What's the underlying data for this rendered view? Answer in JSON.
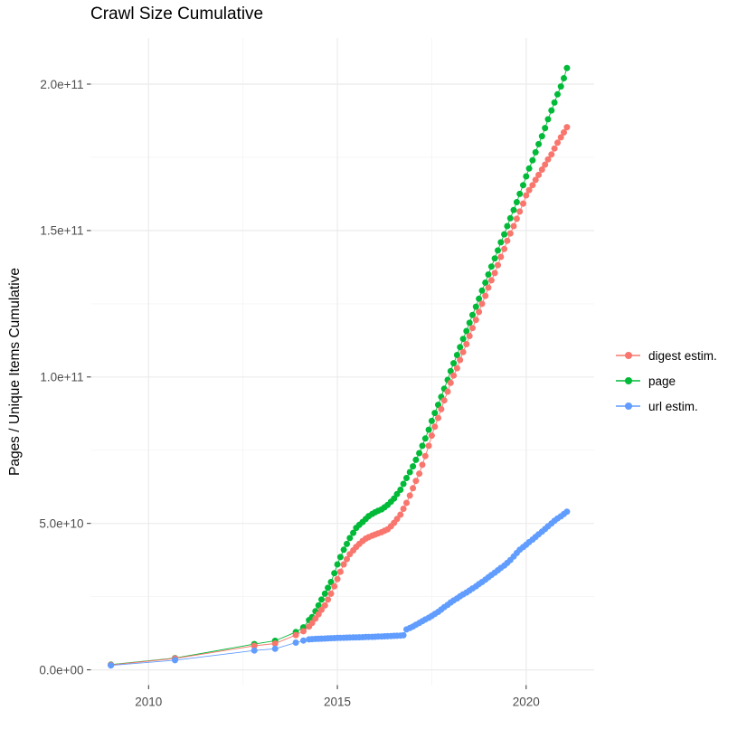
{
  "page": {
    "title": "Crawl Size Cumulative"
  },
  "chart_data": {
    "type": "scatter",
    "title": "Crawl Size Cumulative",
    "xlabel": "",
    "ylabel": "Pages / Unique Items Cumulative",
    "legend_position": "right",
    "grid": {
      "major_color": "#EBEBEB",
      "minor_color": "#F4F4F4",
      "panel_background": "#FFFFFF"
    },
    "axis_text_color": "#4D4D4D",
    "tick_mark_color": "#333333",
    "value_unit_note": "point values stored in billions (1e9); y axis shown in scientific notation",
    "x_range": [
      2008.45,
      2021.85
    ],
    "y_range_billions": [
      -5,
      222
    ],
    "x_ticks": [
      {
        "label": "2010",
        "year": 2010
      },
      {
        "label": "2015",
        "year": 2015
      },
      {
        "label": "2020",
        "year": 2020
      }
    ],
    "x_minor_ticks": [
      2012.5,
      2017.5,
      2022.5
    ],
    "y_ticks": [
      {
        "label": "0.0e+00",
        "billions": 0
      },
      {
        "label": "5.0e+10",
        "billions": 50
      },
      {
        "label": "1.0e+11",
        "billions": 100
      },
      {
        "label": "1.5e+11",
        "billions": 150
      },
      {
        "label": "2.0e+11",
        "billions": 200
      }
    ],
    "y_minor_ticks": [
      25,
      75,
      125,
      175
    ],
    "draw_order": [
      1,
      0,
      2
    ],
    "series": [
      {
        "name": "digest estim.",
        "color": "#F8766D",
        "points": [
          [
            2009.0,
            1.7
          ],
          [
            2010.7,
            3.9
          ],
          [
            2012.8,
            8.2
          ],
          [
            2013.35,
            9.0
          ],
          [
            2013.9,
            11.9
          ],
          [
            2014.1,
            13.2
          ],
          [
            2014.25,
            14.8
          ],
          [
            2014.33,
            16
          ],
          [
            2014.42,
            17.5
          ],
          [
            2014.5,
            19
          ],
          [
            2014.58,
            20.5
          ],
          [
            2014.67,
            22
          ],
          [
            2014.75,
            24
          ],
          [
            2014.83,
            26
          ],
          [
            2014.92,
            28.5
          ],
          [
            2015.0,
            31
          ],
          [
            2015.08,
            33.5
          ],
          [
            2015.17,
            36
          ],
          [
            2015.25,
            37.8
          ],
          [
            2015.33,
            39.5
          ],
          [
            2015.42,
            40.8
          ],
          [
            2015.5,
            42
          ],
          [
            2015.58,
            43
          ],
          [
            2015.67,
            44
          ],
          [
            2015.75,
            44.8
          ],
          [
            2015.83,
            45.3
          ],
          [
            2015.92,
            45.8
          ],
          [
            2016.0,
            46.2
          ],
          [
            2016.08,
            46.6
          ],
          [
            2016.17,
            47
          ],
          [
            2016.25,
            47.5
          ],
          [
            2016.33,
            48
          ],
          [
            2016.42,
            49
          ],
          [
            2016.5,
            50.2
          ],
          [
            2016.58,
            51.5
          ],
          [
            2016.67,
            53
          ],
          [
            2016.75,
            55
          ],
          [
            2016.83,
            57
          ],
          [
            2016.92,
            59.5
          ],
          [
            2017.0,
            62
          ],
          [
            2017.08,
            64.5
          ],
          [
            2017.17,
            67
          ],
          [
            2017.25,
            70
          ],
          [
            2017.33,
            73
          ],
          [
            2017.42,
            76.5
          ],
          [
            2017.5,
            80
          ],
          [
            2017.58,
            83
          ],
          [
            2017.67,
            86
          ],
          [
            2017.75,
            89
          ],
          [
            2017.83,
            92
          ],
          [
            2017.92,
            95
          ],
          [
            2018.0,
            98
          ],
          [
            2018.08,
            100.5
          ],
          [
            2018.17,
            103
          ],
          [
            2018.25,
            105.8
          ],
          [
            2018.33,
            108.5
          ],
          [
            2018.42,
            111.2
          ],
          [
            2018.5,
            114
          ],
          [
            2018.58,
            116.7
          ],
          [
            2018.67,
            119.5
          ],
          [
            2018.75,
            122.2
          ],
          [
            2018.83,
            125
          ],
          [
            2018.92,
            127.7
          ],
          [
            2019.0,
            130.5
          ],
          [
            2019.08,
            133
          ],
          [
            2019.17,
            135.5
          ],
          [
            2019.25,
            138.2
          ],
          [
            2019.33,
            141
          ],
          [
            2019.42,
            143.7
          ],
          [
            2019.5,
            146.5
          ],
          [
            2019.58,
            149
          ],
          [
            2019.67,
            151.5
          ],
          [
            2019.75,
            154
          ],
          [
            2019.83,
            156.5
          ],
          [
            2019.92,
            159.2
          ],
          [
            2020.0,
            162
          ],
          [
            2020.08,
            163.8
          ],
          [
            2020.17,
            165.5
          ],
          [
            2020.25,
            167.3
          ],
          [
            2020.33,
            169
          ],
          [
            2020.42,
            170.8
          ],
          [
            2020.5,
            172.5
          ],
          [
            2020.58,
            174.3
          ],
          [
            2020.67,
            176
          ],
          [
            2020.75,
            178
          ],
          [
            2020.83,
            180
          ],
          [
            2020.92,
            181.8
          ],
          [
            2021.0,
            183.5
          ],
          [
            2021.08,
            185.3
          ]
        ]
      },
      {
        "name": "page",
        "color": "#00BA38",
        "points": [
          [
            2009.0,
            1.8
          ],
          [
            2010.7,
            4.0
          ],
          [
            2012.8,
            8.8
          ],
          [
            2013.35,
            9.9
          ],
          [
            2013.9,
            12.9
          ],
          [
            2014.1,
            14.5
          ],
          [
            2014.25,
            17.0
          ],
          [
            2014.33,
            18
          ],
          [
            2014.42,
            20
          ],
          [
            2014.5,
            22
          ],
          [
            2014.58,
            24
          ],
          [
            2014.67,
            26
          ],
          [
            2014.75,
            28
          ],
          [
            2014.83,
            30
          ],
          [
            2014.92,
            33
          ],
          [
            2015.0,
            36
          ],
          [
            2015.08,
            38.5
          ],
          [
            2015.17,
            41
          ],
          [
            2015.25,
            43
          ],
          [
            2015.33,
            45
          ],
          [
            2015.42,
            46.8
          ],
          [
            2015.5,
            48.5
          ],
          [
            2015.58,
            49.5
          ],
          [
            2015.67,
            50.5
          ],
          [
            2015.75,
            51.5
          ],
          [
            2015.83,
            52.5
          ],
          [
            2015.92,
            53.2
          ],
          [
            2016.0,
            53.8
          ],
          [
            2016.08,
            54.3
          ],
          [
            2016.17,
            54.8
          ],
          [
            2016.25,
            55.5
          ],
          [
            2016.33,
            56.3
          ],
          [
            2016.42,
            57.4
          ],
          [
            2016.5,
            58.5
          ],
          [
            2016.58,
            60
          ],
          [
            2016.67,
            61.5
          ],
          [
            2016.75,
            63.5
          ],
          [
            2016.83,
            65.5
          ],
          [
            2016.92,
            67.5
          ],
          [
            2017.0,
            69.5
          ],
          [
            2017.08,
            71.7
          ],
          [
            2017.17,
            74
          ],
          [
            2017.25,
            76.5
          ],
          [
            2017.33,
            79
          ],
          [
            2017.42,
            82
          ],
          [
            2017.5,
            85
          ],
          [
            2017.58,
            87.7
          ],
          [
            2017.67,
            90.5
          ],
          [
            2017.75,
            93.2
          ],
          [
            2017.83,
            96
          ],
          [
            2017.92,
            99
          ],
          [
            2018.0,
            102
          ],
          [
            2018.08,
            104.7
          ],
          [
            2018.17,
            107.5
          ],
          [
            2018.25,
            110.2
          ],
          [
            2018.33,
            113
          ],
          [
            2018.42,
            115.7
          ],
          [
            2018.5,
            118.5
          ],
          [
            2018.58,
            121.2
          ],
          [
            2018.67,
            124
          ],
          [
            2018.75,
            126.7
          ],
          [
            2018.83,
            129.5
          ],
          [
            2018.92,
            132.2
          ],
          [
            2019.0,
            135
          ],
          [
            2019.08,
            137.7
          ],
          [
            2019.17,
            140.5
          ],
          [
            2019.25,
            143.2
          ],
          [
            2019.33,
            146
          ],
          [
            2019.42,
            148.7
          ],
          [
            2019.5,
            151.5
          ],
          [
            2019.58,
            154.2
          ],
          [
            2019.67,
            157
          ],
          [
            2019.75,
            159.7
          ],
          [
            2019.83,
            162.5
          ],
          [
            2019.92,
            165.5
          ],
          [
            2020.0,
            168.5
          ],
          [
            2020.08,
            171.2
          ],
          [
            2020.17,
            174
          ],
          [
            2020.25,
            176.7
          ],
          [
            2020.33,
            179.5
          ],
          [
            2020.42,
            182.2
          ],
          [
            2020.5,
            185
          ],
          [
            2020.58,
            188
          ],
          [
            2020.67,
            191
          ],
          [
            2020.75,
            193.7
          ],
          [
            2020.83,
            196.5
          ],
          [
            2020.92,
            199.2
          ],
          [
            2021.0,
            202
          ],
          [
            2021.08,
            205.5
          ]
        ]
      },
      {
        "name": "url estim.",
        "color": "#619CFF",
        "points": [
          [
            2009.0,
            1.5
          ],
          [
            2010.7,
            3.3
          ],
          [
            2012.8,
            6.6
          ],
          [
            2013.35,
            7.2
          ],
          [
            2013.9,
            9.3
          ],
          [
            2014.1,
            10.0
          ],
          [
            2014.25,
            10.4
          ],
          [
            2014.33,
            10.5
          ],
          [
            2014.42,
            10.55
          ],
          [
            2014.5,
            10.6
          ],
          [
            2014.58,
            10.65
          ],
          [
            2014.67,
            10.7
          ],
          [
            2014.75,
            10.75
          ],
          [
            2014.83,
            10.8
          ],
          [
            2014.92,
            10.85
          ],
          [
            2015.0,
            10.9
          ],
          [
            2015.08,
            10.93
          ],
          [
            2015.17,
            10.96
          ],
          [
            2015.25,
            11.0
          ],
          [
            2015.33,
            11.03
          ],
          [
            2015.42,
            11.06
          ],
          [
            2015.5,
            11.1
          ],
          [
            2015.58,
            11.13
          ],
          [
            2015.67,
            11.16
          ],
          [
            2015.75,
            11.2
          ],
          [
            2015.83,
            11.23
          ],
          [
            2015.92,
            11.26
          ],
          [
            2016.0,
            11.3
          ],
          [
            2016.08,
            11.35
          ],
          [
            2016.17,
            11.4
          ],
          [
            2016.25,
            11.45
          ],
          [
            2016.33,
            11.5
          ],
          [
            2016.42,
            11.55
          ],
          [
            2016.5,
            11.6
          ],
          [
            2016.58,
            11.65
          ],
          [
            2016.67,
            11.7
          ],
          [
            2016.75,
            11.8
          ],
          [
            2016.83,
            13.8
          ],
          [
            2016.92,
            14.3
          ],
          [
            2017.0,
            14.8
          ],
          [
            2017.08,
            15.4
          ],
          [
            2017.17,
            16.0
          ],
          [
            2017.25,
            16.6
          ],
          [
            2017.33,
            17.2
          ],
          [
            2017.42,
            17.8
          ],
          [
            2017.5,
            18.4
          ],
          [
            2017.58,
            19.1
          ],
          [
            2017.67,
            19.8
          ],
          [
            2017.75,
            20.6
          ],
          [
            2017.83,
            21.4
          ],
          [
            2017.92,
            22.2
          ],
          [
            2018.0,
            23.0
          ],
          [
            2018.08,
            23.7
          ],
          [
            2018.17,
            24.4
          ],
          [
            2018.25,
            25.1
          ],
          [
            2018.33,
            25.8
          ],
          [
            2018.42,
            26.4
          ],
          [
            2018.5,
            27.1
          ],
          [
            2018.58,
            27.8
          ],
          [
            2018.67,
            28.5
          ],
          [
            2018.75,
            29.3
          ],
          [
            2018.83,
            30.0
          ],
          [
            2018.92,
            30.8
          ],
          [
            2019.0,
            31.6
          ],
          [
            2019.08,
            32.4
          ],
          [
            2019.17,
            33.2
          ],
          [
            2019.25,
            34.0
          ],
          [
            2019.33,
            34.8
          ],
          [
            2019.42,
            35.6
          ],
          [
            2019.5,
            36.5
          ],
          [
            2019.58,
            37.5
          ],
          [
            2019.67,
            38.7
          ],
          [
            2019.75,
            39.9
          ],
          [
            2019.83,
            41.0
          ],
          [
            2019.92,
            41.9
          ],
          [
            2020.0,
            42.7
          ],
          [
            2020.08,
            43.6
          ],
          [
            2020.17,
            44.5
          ],
          [
            2020.25,
            45.4
          ],
          [
            2020.33,
            46.3
          ],
          [
            2020.42,
            47.2
          ],
          [
            2020.5,
            48.1
          ],
          [
            2020.58,
            49.0
          ],
          [
            2020.67,
            50.0
          ],
          [
            2020.75,
            50.9
          ],
          [
            2020.83,
            51.7
          ],
          [
            2020.92,
            52.4
          ],
          [
            2021.0,
            53.2
          ],
          [
            2021.08,
            54.0
          ]
        ]
      }
    ]
  }
}
